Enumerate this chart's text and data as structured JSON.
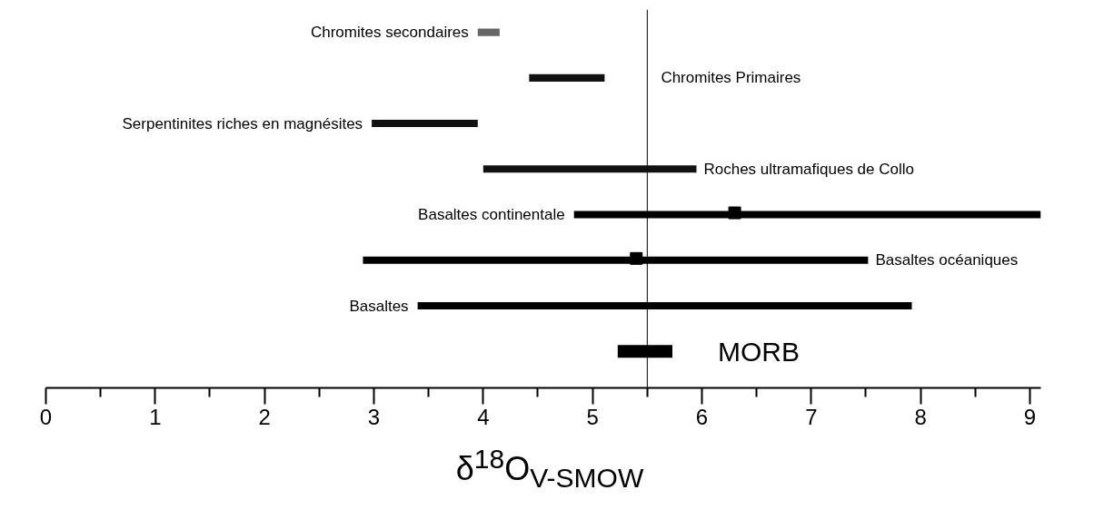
{
  "chart_data": {
    "type": "bar",
    "orientation": "horizontal",
    "xlabel": "δ$^{18}$O$_{V-SMOW}$",
    "categories": [
      "Chromites secondaires",
      "Chromites Primaires",
      "Serpentinites riches en magnésites",
      "Roches ultramafiques de Collo",
      "Basaltes continentale",
      "Basaltes océaniques",
      "Basaltes",
      "MORB"
    ],
    "series": [
      {
        "base": [
          3.95,
          4.42,
          2.98,
          4.0,
          4.83,
          2.9,
          3.4,
          5.23
        ],
        "colors": [
          "#666666",
          "#111111",
          "#111111",
          "#111111",
          "#000000",
          "#000000",
          "#000000",
          "#000000"
        ],
        "values": [
          0.2,
          0.69,
          0.97,
          1.95,
          4.27,
          4.62,
          4.52,
          0.5
        ]
      },
      {
        "type": "scatter",
        "color": "#000000",
        "marker": "square",
        "values": [
          null,
          null,
          null,
          null,
          6.3,
          5.4,
          null,
          null
        ]
      }
    ],
    "xlim": [
      0,
      9.1
    ],
    "xticks": [
      0,
      {
        "value": 0.5,
        "label": null
      },
      1,
      {
        "value": 1.5,
        "label": null
      },
      2,
      {
        "value": 2.5,
        "label": null
      },
      3,
      {
        "value": 3.5,
        "label": null
      },
      4,
      {
        "value": 4.5,
        "label": null
      },
      5,
      {
        "value": 5.5,
        "label": null
      },
      6,
      {
        "value": 6.5,
        "label": null
      },
      7,
      {
        "value": 7.5,
        "label": null
      },
      8,
      {
        "value": 8.5,
        "label": null
      },
      9
    ],
    "ref_lines": [
      {
        "axis": "x",
        "value": 5.5,
        "color": "#000000"
      }
    ],
    "tick_labels": "x",
    "grid": false
  }
}
